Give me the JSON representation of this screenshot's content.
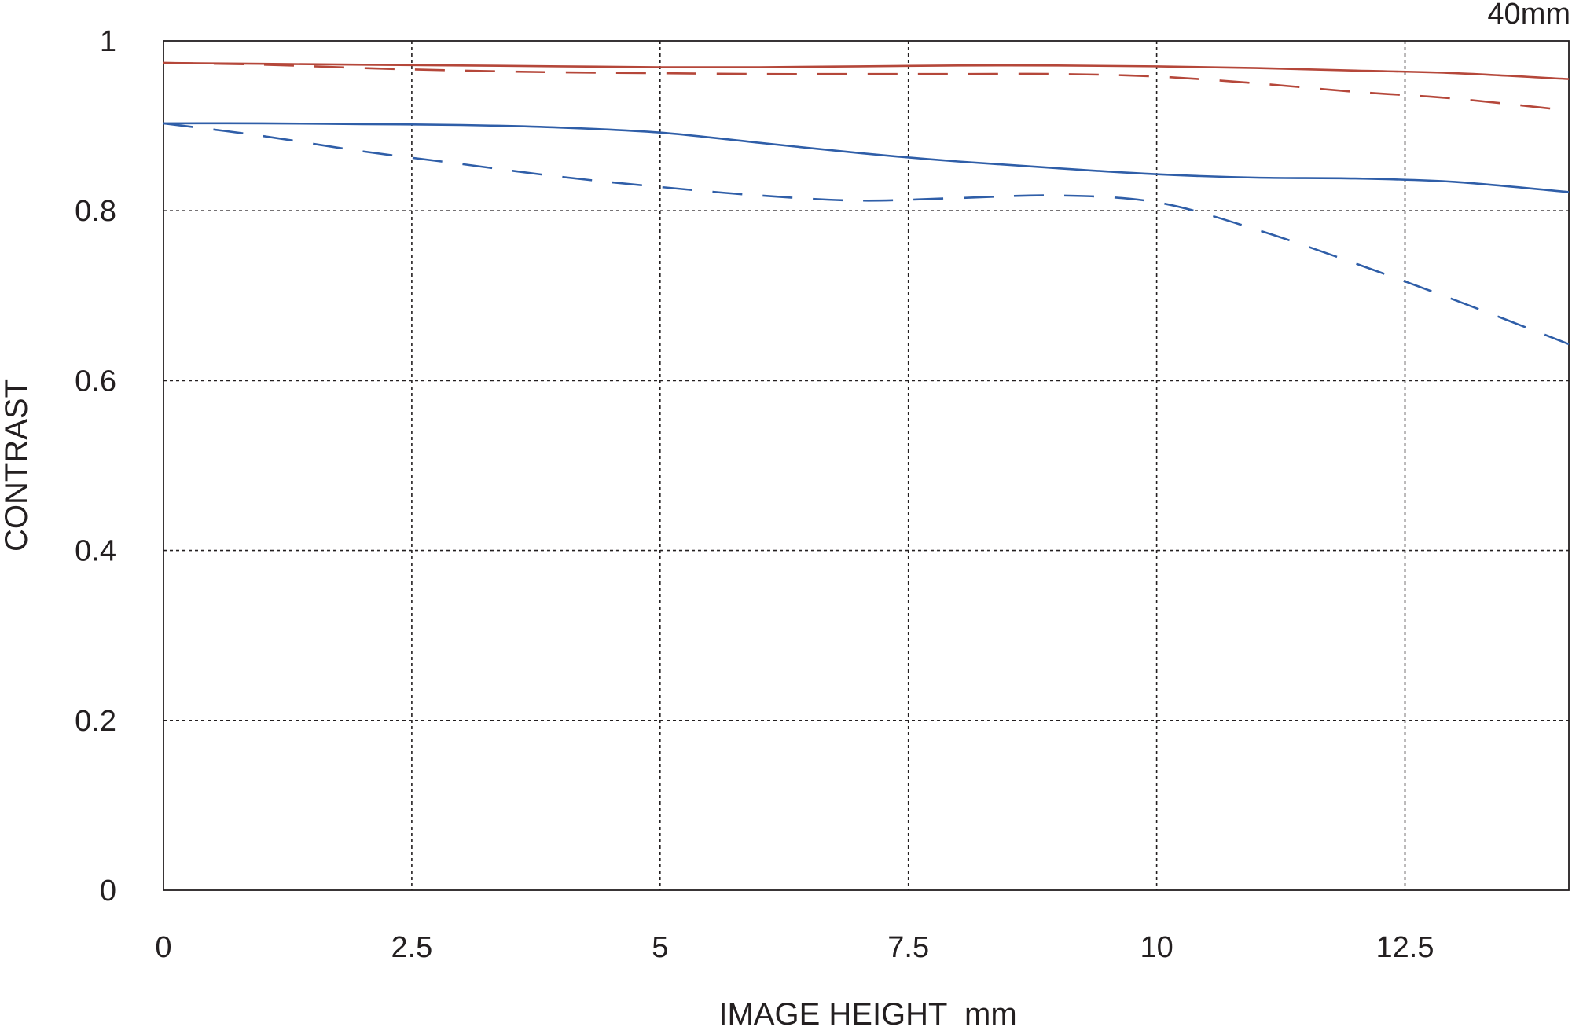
{
  "chart_data": {
    "type": "line",
    "corner_label": "40mm",
    "xlabel": "IMAGE HEIGHT  mm",
    "ylabel": "CONTRAST",
    "xlim": [
      0,
      14.15
    ],
    "ylim": [
      0,
      1
    ],
    "x_ticks": [
      0,
      2.5,
      5,
      7.5,
      10,
      12.5
    ],
    "x_tick_labels": [
      "0",
      "2.5",
      "5",
      "7.5",
      "10",
      "12.5"
    ],
    "y_ticks": [
      0,
      0.2,
      0.4,
      0.6,
      0.8,
      1
    ],
    "y_tick_labels": [
      "0",
      "0.2",
      "0.4",
      "0.6",
      "0.8",
      "1"
    ],
    "grid": true,
    "colors": {
      "red": "#b5473a",
      "blue": "#2f5ea8",
      "ink": "#231f20"
    },
    "series": [
      {
        "color": "#b5473a",
        "dash": "solid",
        "x": [
          0,
          1,
          2,
          3,
          4,
          5,
          6,
          7,
          8,
          9,
          10,
          11,
          12,
          13,
          14.15
        ],
        "y": [
          0.974,
          0.973,
          0.972,
          0.971,
          0.97,
          0.969,
          0.969,
          0.97,
          0.971,
          0.971,
          0.97,
          0.968,
          0.965,
          0.962,
          0.955
        ]
      },
      {
        "color": "#b5473a",
        "dash": "dashed",
        "x": [
          0,
          1,
          2,
          3,
          4,
          5,
          6,
          7,
          8,
          9,
          10,
          11,
          12,
          13,
          14.15
        ],
        "y": [
          0.974,
          0.972,
          0.968,
          0.965,
          0.963,
          0.962,
          0.961,
          0.961,
          0.961,
          0.961,
          0.958,
          0.95,
          0.94,
          0.932,
          0.918
        ]
      },
      {
        "color": "#2f5ea8",
        "dash": "solid",
        "x": [
          0,
          1,
          2,
          3,
          4,
          5,
          6,
          7,
          8,
          9,
          10,
          11,
          12,
          13,
          14.15
        ],
        "y": [
          0.903,
          0.903,
          0.902,
          0.901,
          0.898,
          0.892,
          0.88,
          0.868,
          0.858,
          0.85,
          0.843,
          0.839,
          0.838,
          0.834,
          0.822
        ]
      },
      {
        "color": "#2f5ea8",
        "dash": "dashed",
        "x": [
          0,
          1,
          2,
          3,
          4,
          5,
          6,
          7,
          8,
          9,
          10,
          11,
          12,
          13,
          14.15
        ],
        "y": [
          0.903,
          0.888,
          0.87,
          0.855,
          0.84,
          0.828,
          0.818,
          0.812,
          0.815,
          0.818,
          0.81,
          0.778,
          0.738,
          0.695,
          0.643
        ]
      }
    ]
  }
}
